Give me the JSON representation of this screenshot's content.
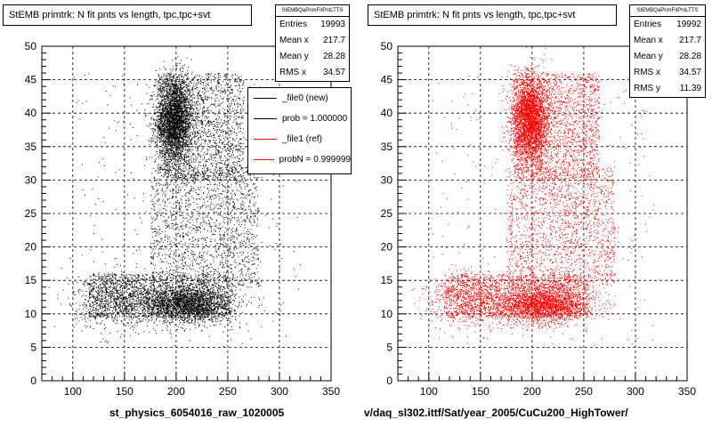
{
  "chart_data": [
    {
      "type": "scatter",
      "title": "StEMB primtrk: N fit pnts vs length, tpc,tpc+svt",
      "xlabel": "st_physics_6054016_raw_1020005",
      "ylabel": "",
      "xlim": [
        70,
        350
      ],
      "ylim": [
        0,
        50
      ],
      "x_ticks": [
        "100",
        "150",
        "200",
        "250",
        "300",
        "350"
      ],
      "y_ticks": [
        "0",
        "5",
        "10",
        "15",
        "20",
        "25",
        "30",
        "35",
        "40",
        "45",
        "50"
      ],
      "grid": true,
      "marker_color": "#000000",
      "stats": {
        "header": "StEMBQaPrimFitPntLTTS",
        "rows": [
          {
            "label": "Entries",
            "value": "19993"
          },
          {
            "label": "Mean x",
            "value": "217.7"
          },
          {
            "label": "Mean y",
            "value": "28.28"
          },
          {
            "label": "RMS x",
            "value": "34.57"
          }
        ]
      },
      "legend": [
        {
          "label": "_file0 (new)",
          "color": "#000000"
        },
        {
          "label": "prob = 1.000000",
          "color": "#000000"
        },
        {
          "label": "_file1 (ref)",
          "color": "#ff0000"
        },
        {
          "label": "probN = 0.999999",
          "color": "#ff0000"
        }
      ]
    },
    {
      "type": "scatter",
      "title": "StEMB primtrk: N fit pnts vs length, tpc,tpc+svt",
      "xlabel": "v/daq_sl302.ittf/Sat/year_2005/CuCu200_HighTower/",
      "ylabel": "",
      "xlim": [
        70,
        350
      ],
      "ylim": [
        0,
        50
      ],
      "x_ticks": [
        "100",
        "150",
        "200",
        "250",
        "300",
        "350"
      ],
      "y_ticks": [
        "0",
        "5",
        "10",
        "15",
        "20",
        "25",
        "30",
        "35",
        "40",
        "45",
        "50"
      ],
      "grid": true,
      "marker_color": "#ff0000",
      "stats": {
        "header": "StEMBQaPrimFitPntLTTS",
        "rows": [
          {
            "label": "Entries",
            "value": "19992"
          },
          {
            "label": "Mean x",
            "value": "217.7"
          },
          {
            "label": "Mean y",
            "value": "28.28"
          },
          {
            "label": "RMS x",
            "value": "34.57"
          },
          {
            "label": "RMS y",
            "value": "11.39"
          }
        ]
      }
    }
  ]
}
